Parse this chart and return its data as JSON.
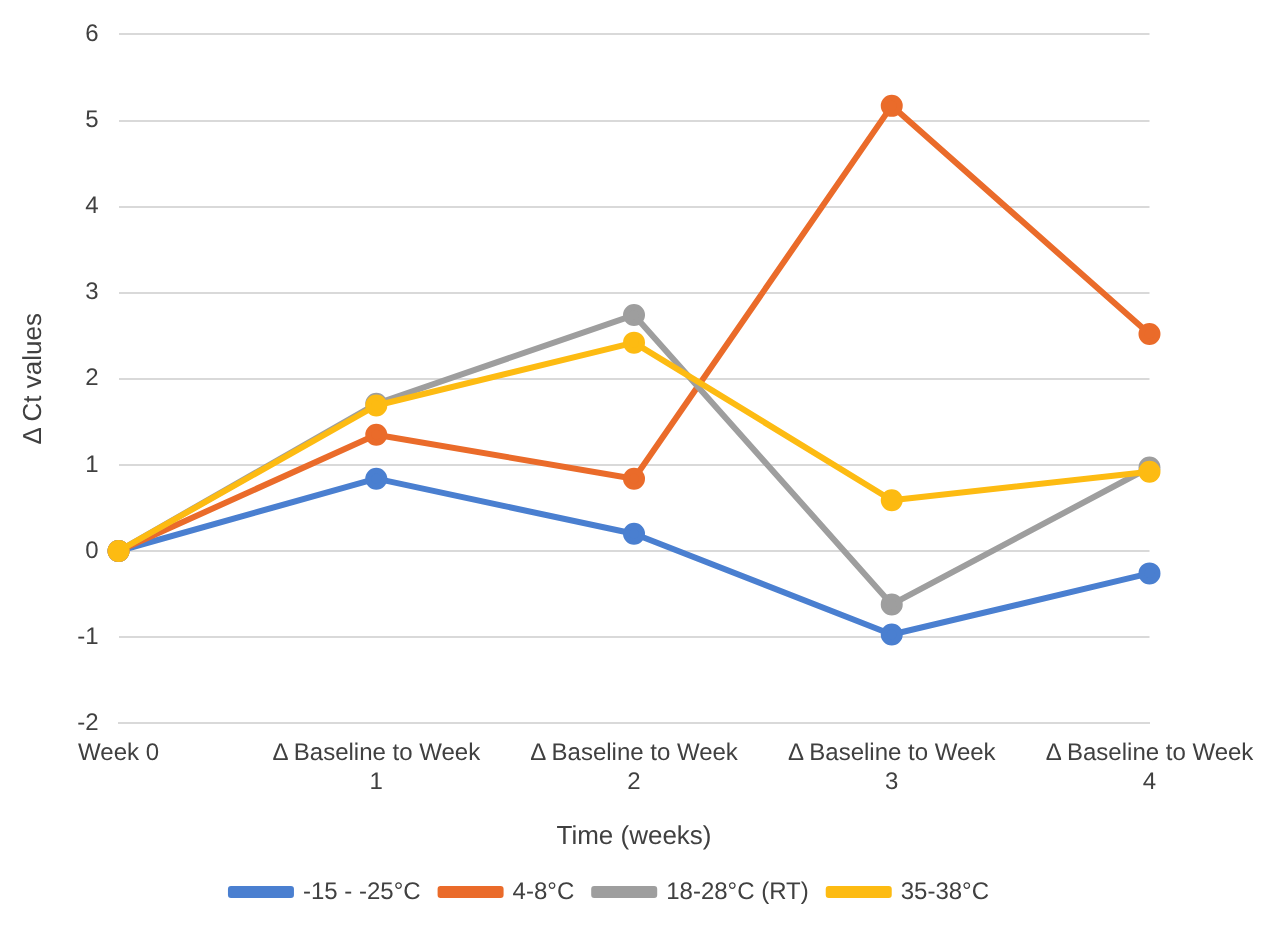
{
  "chart_data": {
    "type": "line",
    "xlabel": "Time (weeks)",
    "ylabel": "Δ Ct values",
    "categories": [
      "Week 0",
      "Δ Baseline to Week 1",
      "Δ Baseline to Week 2",
      "Δ Baseline to Week 3",
      "Δ Baseline to Week 4"
    ],
    "series": [
      {
        "name": "-15 - -25°C",
        "color": "#4a7fd0",
        "values": [
          0,
          0.84,
          0.2,
          -0.97,
          -0.26
        ]
      },
      {
        "name": "4-8°C",
        "color": "#ea6b2a",
        "values": [
          0,
          1.35,
          0.84,
          5.17,
          2.52
        ]
      },
      {
        "name": "18-28°C (RT)",
        "color": "#9e9e9e",
        "values": [
          0,
          1.71,
          2.74,
          -0.62,
          0.97
        ]
      },
      {
        "name": "35-38°C",
        "color": "#fdbb12",
        "values": [
          0,
          1.69,
          2.42,
          0.59,
          0.92
        ]
      }
    ],
    "ylim": [
      -2,
      6
    ],
    "yticks": [
      -2,
      -1,
      0,
      1,
      2,
      3,
      4,
      5,
      6
    ],
    "grid": "y",
    "legend": "bottom",
    "marker": "circle",
    "line_style": "solid"
  }
}
